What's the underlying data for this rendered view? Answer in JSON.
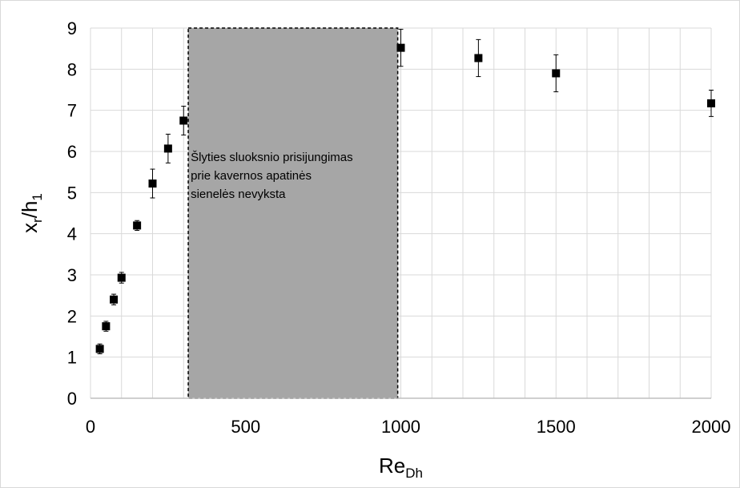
{
  "chart_data": {
    "type": "scatter",
    "title": "",
    "xlabel": {
      "main": "Re",
      "sub": "Dh"
    },
    "ylabel": {
      "main1": "x",
      "sub1": "r",
      "main2": "/h",
      "sub2": "1"
    },
    "xlim": [
      0,
      2000
    ],
    "ylim": [
      0,
      9
    ],
    "xticks": [
      0,
      500,
      1000,
      1500,
      2000
    ],
    "yticks": [
      0,
      1,
      2,
      3,
      4,
      5,
      6,
      7,
      8,
      9
    ],
    "x_minor_step": 100,
    "grid": true,
    "legend": "none",
    "marker": "square",
    "marker_color": "#000000",
    "points": [
      {
        "x": 30,
        "y": 1.2,
        "err": 0.12
      },
      {
        "x": 50,
        "y": 1.75,
        "err": 0.12
      },
      {
        "x": 75,
        "y": 2.4,
        "err": 0.13
      },
      {
        "x": 100,
        "y": 2.93,
        "err": 0.13
      },
      {
        "x": 150,
        "y": 4.2,
        "err": 0.12
      },
      {
        "x": 200,
        "y": 5.22,
        "err": 0.35
      },
      {
        "x": 250,
        "y": 6.07,
        "err": 0.35
      },
      {
        "x": 300,
        "y": 6.75,
        "err": 0.35
      },
      {
        "x": 1000,
        "y": 8.52,
        "err": 0.45
      },
      {
        "x": 1250,
        "y": 8.27,
        "err": 0.45
      },
      {
        "x": 1500,
        "y": 7.9,
        "err": 0.45
      },
      {
        "x": 2000,
        "y": 7.17,
        "err": 0.32
      }
    ],
    "shaded_region": {
      "x_start": 315,
      "x_end": 990,
      "fill": "#a6a6a6",
      "label_lines": [
        "Šlyties sluoksnio prisijungimas",
        "prie kavernos apatinės",
        "sienelės nevyksta"
      ]
    }
  }
}
